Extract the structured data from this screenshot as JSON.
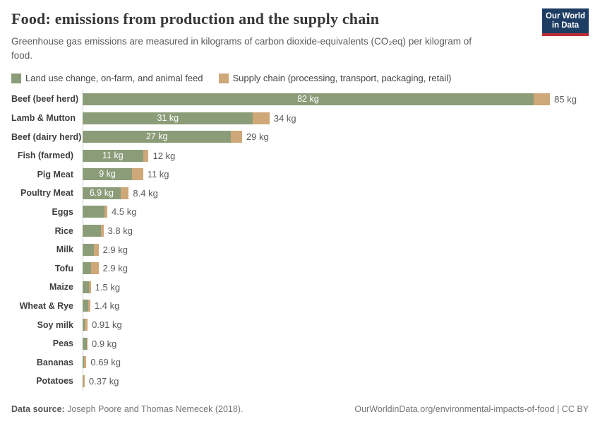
{
  "header": {
    "title": "Food: emissions from production and the supply chain",
    "subtitle": "Greenhouse gas emissions are measured in kilograms of carbon dioxide-equivalents (CO₂eq) per kilogram of food."
  },
  "logo": {
    "line1": "Our World",
    "line2": "in Data"
  },
  "colors": {
    "production_green": "#8b9c79",
    "supply_tan": "#cea878",
    "logo_navy": "#1d3d63",
    "logo_red": "#bf2e36",
    "axis_line": "#cfcfcf"
  },
  "chart_data": {
    "type": "bar",
    "orientation": "horizontal",
    "stacked": true,
    "unit": "kg CO₂eq per kilogram of food",
    "title": "Food: emissions from production and the supply chain",
    "categories": [
      "Beef (beef herd)",
      "Lamb & Mutton",
      "Beef (dairy herd)",
      "Fish (farmed)",
      "Pig Meat",
      "Poultry Meat",
      "Eggs",
      "Rice",
      "Milk",
      "Tofu",
      "Maize",
      "Wheat & Rye",
      "Soy milk",
      "Peas",
      "Bananas",
      "Potatoes"
    ],
    "series": [
      {
        "name": "Land use change, on-farm, and animal feed",
        "color": "#8b9c79",
        "values": [
          82,
          31,
          27,
          11,
          9,
          6.9,
          4.0,
          3.4,
          2.1,
          1.6,
          1.1,
          1.0,
          0.35,
          0.72,
          0.27,
          0.16
        ]
      },
      {
        "name": "Supply chain (processing, transport, packaging, retail)",
        "color": "#cea878",
        "values": [
          3,
          3,
          2,
          1,
          2,
          1.5,
          0.5,
          0.4,
          0.8,
          1.3,
          0.4,
          0.4,
          0.56,
          0.18,
          0.42,
          0.21
        ]
      }
    ],
    "totals": [
      85,
      34,
      29,
      12,
      11,
      8.4,
      4.5,
      3.8,
      2.9,
      2.9,
      1.5,
      1.4,
      0.91,
      0.9,
      0.69,
      0.37
    ],
    "bar_value_labels": [
      "82 kg",
      "31 kg",
      "27 kg",
      "11 kg",
      "9 kg",
      "6.9 kg",
      null,
      null,
      null,
      null,
      null,
      null,
      null,
      null,
      null,
      null
    ],
    "total_labels": [
      "85 kg",
      "34 kg",
      "29 kg",
      "12 kg",
      "11 kg",
      "8.4 kg",
      "4.5 kg",
      "3.8 kg",
      "2.9 kg",
      "2.9 kg",
      "1.5 kg",
      "1.4 kg",
      "0.91 kg",
      "0.9 kg",
      "0.69 kg",
      "0.37 kg"
    ],
    "xlim": [
      0,
      85
    ],
    "grid": false,
    "legend_position": "top"
  },
  "footer": {
    "source_label": "Data source:",
    "source_text": "Joseph Poore and Thomas Nemecek (2018).",
    "link": "OurWorldinData.org/environmental-impacts-of-food",
    "license": " | CC BY"
  }
}
